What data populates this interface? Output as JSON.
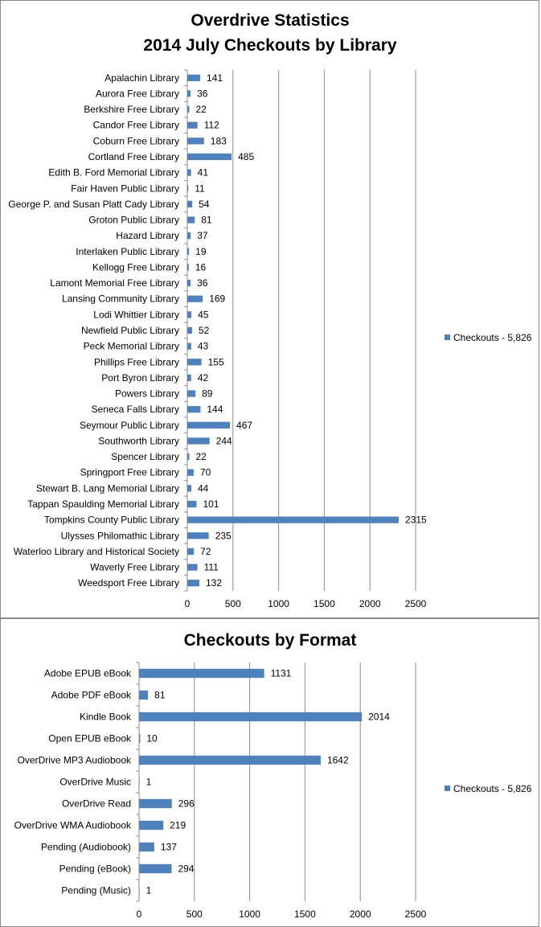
{
  "chart_data": [
    {
      "type": "bar",
      "orientation": "horizontal",
      "title": "Overdrive Statistics",
      "subtitle": "2014 July Checkouts by Library",
      "categories": [
        "Apalachin Library",
        "Aurora Free Library",
        "Berkshire Free Library",
        "Candor Free Library",
        "Coburn Free Library",
        "Cortland Free Library",
        "Edith B. Ford Memorial Library",
        "Fair Haven Public Library",
        "George P. and Susan Platt Cady Library",
        "Groton Public Library",
        "Hazard Library",
        "Interlaken Public Library",
        "Kellogg Free Library",
        "Lamont Memorial Free Library",
        "Lansing Community Library",
        "Lodi Whittier Library",
        "Newfield Public Library",
        "Peck Memorial Library",
        "Phillips Free Library",
        "Port Byron Library",
        "Powers Library",
        "Seneca Falls Library",
        "Seymour Public Library",
        "Southworth Library",
        "Spencer Library",
        "Springport Free Library",
        "Stewart B. Lang Memorial Library",
        "Tappan Spaulding Memorial Library",
        "Tompkins County Public Library",
        "Ulysses Philomathic Library",
        "Waterloo Library and Historical Society",
        "Waverly Free Library",
        "Weedsport Free Library"
      ],
      "series": [
        {
          "name": "Checkouts - 5,826",
          "values": [
            141,
            36,
            22,
            112,
            183,
            485,
            41,
            11,
            54,
            81,
            37,
            19,
            16,
            36,
            169,
            45,
            52,
            43,
            155,
            42,
            89,
            144,
            467,
            244,
            22,
            70,
            44,
            101,
            2315,
            235,
            72,
            111,
            132
          ]
        }
      ],
      "xlim": [
        0,
        2500
      ],
      "xticks": [
        0,
        500,
        1000,
        1500,
        2000,
        2500
      ],
      "xlabel": "",
      "ylabel": "",
      "grid": "vertical",
      "legend": "right",
      "colors": {
        "bar": "#4f81bd",
        "grid": "#8c8c8c"
      }
    },
    {
      "type": "bar",
      "orientation": "horizontal",
      "title": "Checkouts by Format",
      "categories": [
        "Adobe EPUB eBook",
        "Adobe PDF eBook",
        "Kindle Book",
        "Open EPUB eBook",
        "OverDrive MP3 Audiobook",
        "OverDrive Music",
        "OverDrive Read",
        "OverDrive WMA Audiobook",
        "Pending (Audiobook)",
        "Pending (eBook)",
        "Pending (Music)"
      ],
      "series": [
        {
          "name": "Checkouts - 5,826",
          "values": [
            1131,
            81,
            2014,
            10,
            1642,
            1,
            296,
            219,
            137,
            294,
            1
          ]
        }
      ],
      "xlim": [
        0,
        2500
      ],
      "xticks": [
        0,
        500,
        1000,
        1500,
        2000,
        2500
      ],
      "xlabel": "",
      "ylabel": "",
      "grid": "vertical",
      "legend": "right",
      "colors": {
        "bar": "#4f81bd",
        "grid": "#8c8c8c"
      }
    }
  ]
}
